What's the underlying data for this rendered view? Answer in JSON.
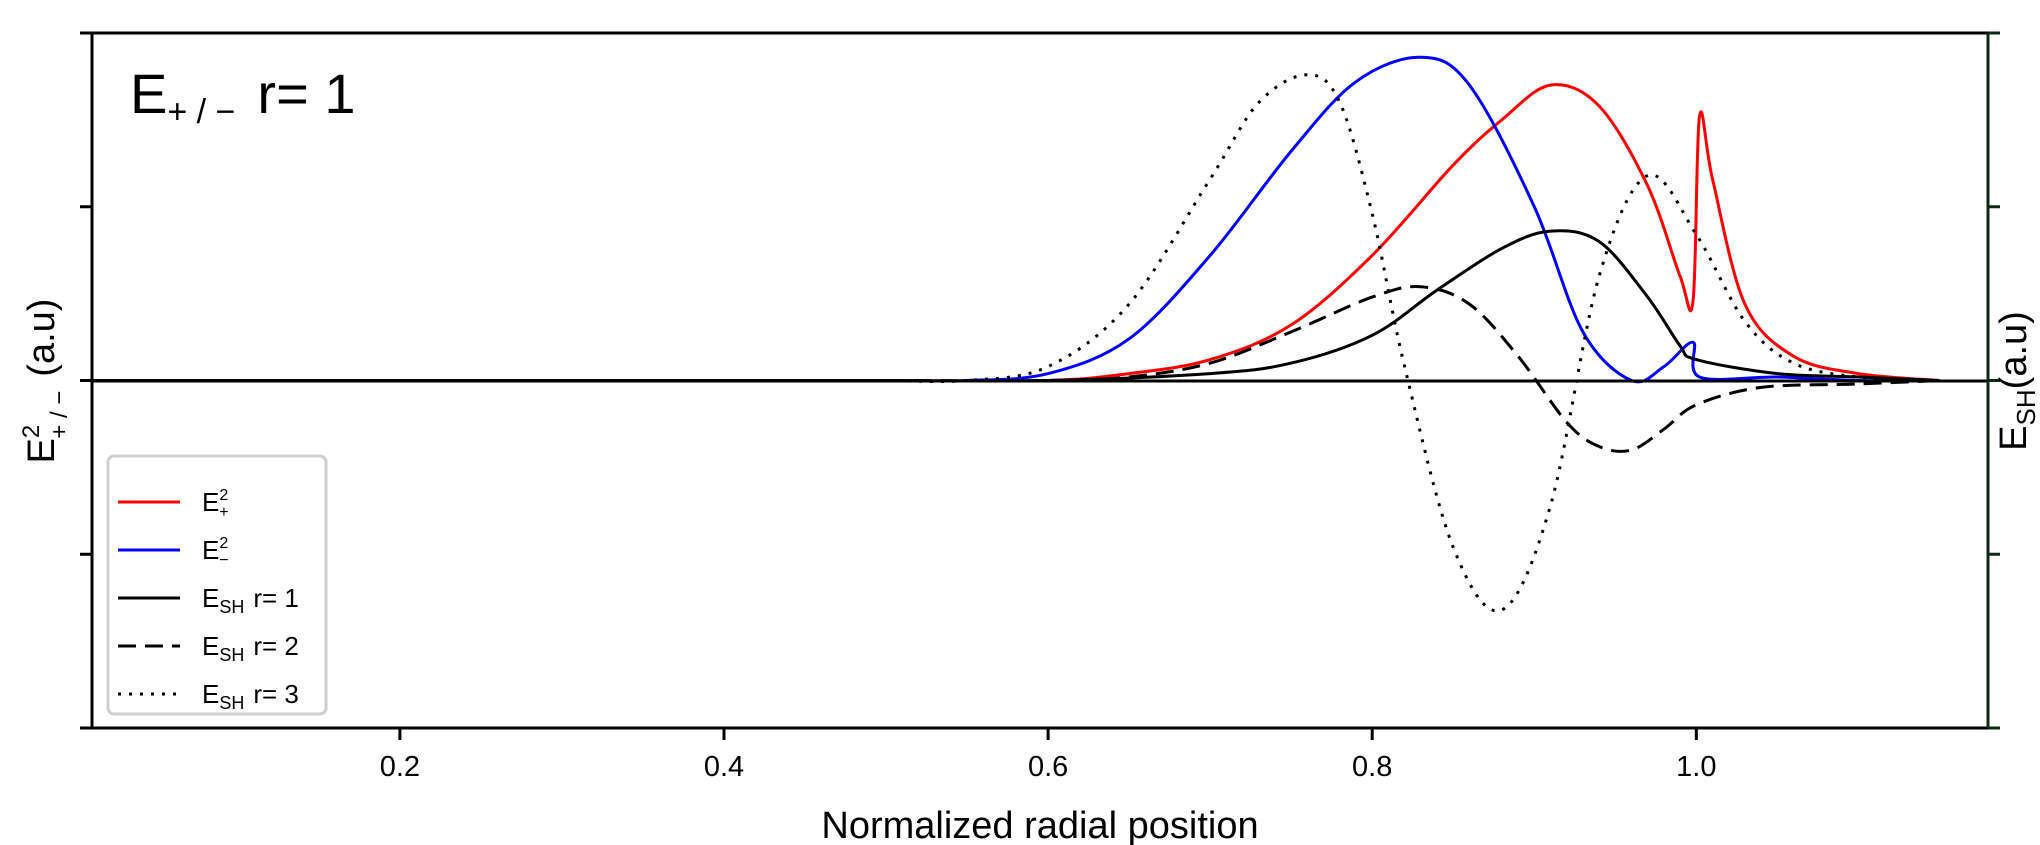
{
  "chart_data": {
    "type": "line",
    "panel_label": {
      "main": "E",
      "sub": "+ / −",
      "suffix": "r= 1"
    },
    "xlabel": "Normalized radial position",
    "ylabel_left": {
      "main": "E",
      "sup": "2",
      "sub": "+ / −",
      "suffix": "(a.u)"
    },
    "ylabel_right": {
      "main": "E",
      "sub": "SH",
      "suffix": "(a.u)"
    },
    "xlim": [
      0.01,
      1.18
    ],
    "ylim": [
      -1.0,
      1.0
    ],
    "xticks": [
      "0.2",
      "0.4",
      "0.6",
      "0.8",
      "1.0"
    ],
    "y_ticks_labeled": false,
    "grid": false,
    "legend_position": "lower-left",
    "series": [
      {
        "name": "E+2",
        "legend": {
          "main": "E",
          "sup": "2",
          "sub": "+",
          "suffix": ""
        },
        "color": "#ff0000",
        "dash": "solid",
        "x": [
          0.5,
          0.6,
          0.65,
          0.7,
          0.75,
          0.8,
          0.85,
          0.88,
          0.91,
          0.94,
          0.97,
          0.99,
          0.998,
          1.002,
          1.01,
          1.03,
          1.06,
          1.1,
          1.15
        ],
        "y": [
          0.0,
          0.0,
          0.02,
          0.06,
          0.16,
          0.36,
          0.62,
          0.75,
          0.85,
          0.79,
          0.56,
          0.3,
          0.23,
          0.76,
          0.58,
          0.22,
          0.07,
          0.02,
          0.0
        ]
      },
      {
        "name": "E-2",
        "legend": {
          "main": "E",
          "sup": "2",
          "sub": "−",
          "suffix": ""
        },
        "color": "#0000ff",
        "dash": "solid",
        "x": [
          0.5,
          0.55,
          0.6,
          0.65,
          0.7,
          0.75,
          0.79,
          0.83,
          0.86,
          0.9,
          0.93,
          0.96,
          0.98,
          0.998,
          1.002,
          1.05,
          1.1,
          1.15
        ],
        "y": [
          0.0,
          0.0,
          0.02,
          0.12,
          0.36,
          0.66,
          0.86,
          0.93,
          0.85,
          0.5,
          0.14,
          0.0,
          0.04,
          0.11,
          0.01,
          0.01,
          0.0,
          0.0
        ]
      },
      {
        "name": "ESH r=1",
        "legend": {
          "main": "E",
          "sup": "",
          "sub": "SH",
          "suffix": "r= 1"
        },
        "color": "#000000",
        "dash": "solid",
        "x": [
          0.5,
          0.6,
          0.7,
          0.75,
          0.8,
          0.84,
          0.88,
          0.91,
          0.94,
          0.97,
          0.99,
          1.0,
          1.05,
          1.1,
          1.15
        ],
        "y": [
          0.0,
          0.0,
          0.02,
          0.05,
          0.13,
          0.26,
          0.38,
          0.43,
          0.4,
          0.24,
          0.1,
          0.06,
          0.02,
          0.01,
          0.0
        ]
      },
      {
        "name": "ESH r=2",
        "legend": {
          "main": "E",
          "sup": "",
          "sub": "SH",
          "suffix": "r= 2"
        },
        "color": "#000000",
        "dash": "dashed",
        "x": [
          0.5,
          0.6,
          0.65,
          0.7,
          0.75,
          0.8,
          0.83,
          0.86,
          0.89,
          0.92,
          0.94,
          0.96,
          0.98,
          1.0,
          1.04,
          1.1,
          1.15
        ],
        "y": [
          0.0,
          0.0,
          0.01,
          0.05,
          0.14,
          0.24,
          0.27,
          0.22,
          0.07,
          -0.12,
          -0.19,
          -0.2,
          -0.14,
          -0.07,
          -0.02,
          -0.01,
          0.0
        ]
      },
      {
        "name": "ESH r=3",
        "legend": {
          "main": "E",
          "sup": "",
          "sub": "SH",
          "suffix": "r= 3"
        },
        "color": "#000000",
        "dash": "dotted",
        "x": [
          0.5,
          0.55,
          0.6,
          0.65,
          0.7,
          0.73,
          0.76,
          0.78,
          0.8,
          0.82,
          0.85,
          0.88,
          0.91,
          0.94,
          0.97,
          1.0,
          1.03,
          1.06,
          1.1,
          1.15
        ],
        "y": [
          0.0,
          0.0,
          0.04,
          0.22,
          0.58,
          0.8,
          0.88,
          0.8,
          0.48,
          0.04,
          -0.48,
          -0.66,
          -0.36,
          0.3,
          0.59,
          0.42,
          0.17,
          0.05,
          0.01,
          0.0
        ]
      }
    ]
  }
}
